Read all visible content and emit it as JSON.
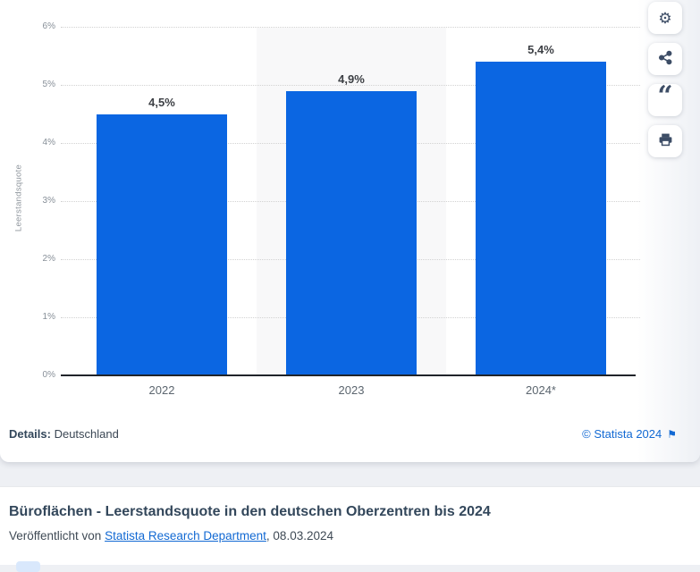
{
  "chart_data": {
    "type": "bar",
    "categories": [
      "2022",
      "2023",
      "2024*"
    ],
    "values": [
      4.5,
      4.9,
      5.4
    ],
    "value_labels": [
      "4,5%",
      "4,9%",
      "5,4%"
    ],
    "title": "",
    "xlabel": "",
    "ylabel": "Leerstandsquote",
    "ylim": [
      0,
      6
    ],
    "ytick_step": 1,
    "ytick_labels": [
      "0%",
      "1%",
      "2%",
      "3%",
      "4%",
      "5%",
      "6%"
    ],
    "grid": "horizontal-dotted",
    "legend": "none",
    "bar_color": "#0b66e2",
    "highlighted_category_index": 1,
    "highlight_color": "#f8f8f9"
  },
  "toolbar": {
    "buttons": [
      {
        "label": "settings",
        "icon": "gear-icon",
        "glyph": "⚙"
      },
      {
        "label": "share",
        "icon": "share-icon"
      },
      {
        "label": "cite",
        "icon": "quote-icon",
        "glyph": "“"
      },
      {
        "label": "print",
        "icon": "printer-icon"
      }
    ]
  },
  "card_footer": {
    "details_label": "Details:",
    "details_value": " Deutschland",
    "copyright": "© Statista 2024",
    "flag_glyph": "⚑"
  },
  "info": {
    "title": "Büroflächen - Leerstandsquote in den deutschen Oberzentren bis 2024",
    "published_prefix": "Veröffentlicht von ",
    "published_link": "Statista Research Department",
    "published_suffix": ", 08.03.2024"
  },
  "colors": {
    "bar": "#0b66e2",
    "link": "#1269d3",
    "title_text": "#33475b",
    "page_background": "#eef0f4"
  }
}
